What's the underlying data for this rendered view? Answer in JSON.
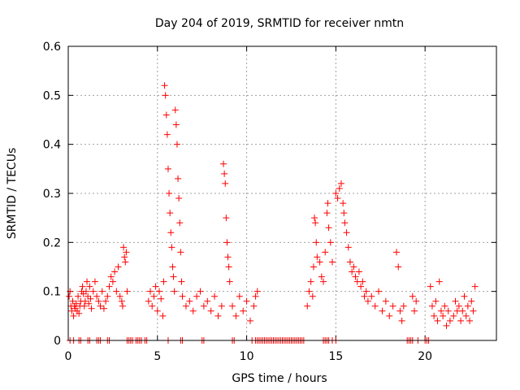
{
  "chart_data": {
    "type": "scatter",
    "title": "Day 204 of 2019, SRMTID for receiver nmtn",
    "xlabel": "GPS time / hours",
    "ylabel": "SRMTID / TECUs",
    "xlim": [
      0,
      24
    ],
    "ylim": [
      0,
      0.6
    ],
    "xticks": [
      0,
      5,
      10,
      15,
      20
    ],
    "yticks": [
      0,
      0.1,
      0.2,
      0.3,
      0.4,
      0.5,
      0.6
    ],
    "xtick_labels": [
      "0",
      "5",
      "10",
      "15",
      "20"
    ],
    "ytick_labels": [
      "0",
      "0.1",
      "0.2",
      "0.3",
      "0.4",
      "0.5",
      "0.6"
    ],
    "grid": true,
    "marker": "+",
    "color": "#ff0000",
    "series": [
      {
        "name": "SRMTID",
        "points": [
          [
            0.05,
            0.09
          ],
          [
            0.1,
            0.1
          ],
          [
            0.15,
            0.07
          ],
          [
            0.2,
            0.06
          ],
          [
            0.25,
            0.08
          ],
          [
            0.3,
            0.05
          ],
          [
            0.35,
            0.07
          ],
          [
            0.4,
            0.065
          ],
          [
            0.45,
            0.075
          ],
          [
            0.5,
            0.06
          ],
          [
            0.55,
            0.09
          ],
          [
            0.6,
            0.055
          ],
          [
            0.65,
            0.07
          ],
          [
            0.7,
            0.08
          ],
          [
            0.75,
            0.1
          ],
          [
            0.8,
            0.11
          ],
          [
            0.85,
            0.095
          ],
          [
            0.9,
            0.07
          ],
          [
            0.95,
            0.08
          ],
          [
            1.0,
            0.1
          ],
          [
            1.05,
            0.12
          ],
          [
            1.1,
            0.09
          ],
          [
            1.15,
            0.075
          ],
          [
            1.2,
            0.11
          ],
          [
            1.25,
            0.085
          ],
          [
            1.3,
            0.065
          ],
          [
            1.4,
            0.1
          ],
          [
            1.5,
            0.12
          ],
          [
            1.6,
            0.09
          ],
          [
            1.7,
            0.08
          ],
          [
            1.8,
            0.07
          ],
          [
            1.9,
            0.1
          ],
          [
            2.0,
            0.065
          ],
          [
            2.1,
            0.08
          ],
          [
            2.2,
            0.09
          ],
          [
            2.3,
            0.11
          ],
          [
            2.4,
            0.13
          ],
          [
            2.5,
            0.12
          ],
          [
            2.6,
            0.14
          ],
          [
            2.7,
            0.1
          ],
          [
            2.8,
            0.15
          ],
          [
            2.9,
            0.09
          ],
          [
            3.0,
            0.08
          ],
          [
            3.05,
            0.07
          ],
          [
            3.1,
            0.19
          ],
          [
            3.15,
            0.17
          ],
          [
            3.2,
            0.16
          ],
          [
            3.25,
            0.18
          ],
          [
            3.3,
            0.1
          ],
          [
            4.5,
            0.08
          ],
          [
            4.6,
            0.1
          ],
          [
            4.7,
            0.07
          ],
          [
            4.8,
            0.09
          ],
          [
            4.9,
            0.11
          ],
          [
            5.0,
            0.06
          ],
          [
            5.1,
            0.1
          ],
          [
            5.2,
            0.085
          ],
          [
            5.3,
            0.05
          ],
          [
            5.35,
            0.12
          ],
          [
            5.4,
            0.52
          ],
          [
            5.45,
            0.5
          ],
          [
            5.5,
            0.46
          ],
          [
            5.55,
            0.42
          ],
          [
            5.6,
            0.35
          ],
          [
            5.65,
            0.3
          ],
          [
            5.7,
            0.26
          ],
          [
            5.75,
            0.22
          ],
          [
            5.8,
            0.19
          ],
          [
            5.85,
            0.15
          ],
          [
            5.9,
            0.13
          ],
          [
            5.95,
            0.1
          ],
          [
            6.0,
            0.47
          ],
          [
            6.05,
            0.44
          ],
          [
            6.1,
            0.4
          ],
          [
            6.15,
            0.33
          ],
          [
            6.2,
            0.29
          ],
          [
            6.25,
            0.24
          ],
          [
            6.3,
            0.18
          ],
          [
            6.35,
            0.12
          ],
          [
            6.4,
            0.09
          ],
          [
            6.6,
            0.07
          ],
          [
            6.8,
            0.08
          ],
          [
            7.0,
            0.06
          ],
          [
            7.2,
            0.09
          ],
          [
            7.4,
            0.1
          ],
          [
            7.6,
            0.07
          ],
          [
            7.8,
            0.08
          ],
          [
            8.0,
            0.06
          ],
          [
            8.2,
            0.09
          ],
          [
            8.4,
            0.05
          ],
          [
            8.6,
            0.07
          ],
          [
            8.7,
            0.36
          ],
          [
            8.75,
            0.34
          ],
          [
            8.8,
            0.32
          ],
          [
            8.85,
            0.25
          ],
          [
            8.9,
            0.2
          ],
          [
            8.95,
            0.17
          ],
          [
            9.0,
            0.15
          ],
          [
            9.05,
            0.12
          ],
          [
            9.2,
            0.07
          ],
          [
            9.4,
            0.05
          ],
          [
            9.6,
            0.09
          ],
          [
            9.8,
            0.06
          ],
          [
            10.0,
            0.08
          ],
          [
            10.2,
            0.04
          ],
          [
            10.4,
            0.07
          ],
          [
            10.5,
            0.09
          ],
          [
            10.6,
            0.1
          ],
          [
            13.4,
            0.07
          ],
          [
            13.5,
            0.1
          ],
          [
            13.6,
            0.12
          ],
          [
            13.7,
            0.09
          ],
          [
            13.75,
            0.15
          ],
          [
            13.8,
            0.25
          ],
          [
            13.85,
            0.24
          ],
          [
            13.9,
            0.2
          ],
          [
            13.95,
            0.17
          ],
          [
            14.1,
            0.16
          ],
          [
            14.2,
            0.13
          ],
          [
            14.3,
            0.12
          ],
          [
            14.4,
            0.18
          ],
          [
            14.5,
            0.26
          ],
          [
            14.55,
            0.28
          ],
          [
            14.6,
            0.23
          ],
          [
            14.7,
            0.2
          ],
          [
            14.8,
            0.16
          ],
          [
            15.0,
            0.3
          ],
          [
            15.1,
            0.29
          ],
          [
            15.2,
            0.31
          ],
          [
            15.3,
            0.32
          ],
          [
            15.4,
            0.28
          ],
          [
            15.45,
            0.26
          ],
          [
            15.5,
            0.24
          ],
          [
            15.6,
            0.22
          ],
          [
            15.7,
            0.19
          ],
          [
            15.8,
            0.16
          ],
          [
            15.9,
            0.14
          ],
          [
            16.0,
            0.15
          ],
          [
            16.1,
            0.13
          ],
          [
            16.2,
            0.12
          ],
          [
            16.3,
            0.14
          ],
          [
            16.4,
            0.11
          ],
          [
            16.5,
            0.12
          ],
          [
            16.6,
            0.09
          ],
          [
            16.7,
            0.1
          ],
          [
            16.8,
            0.08
          ],
          [
            17.0,
            0.09
          ],
          [
            17.2,
            0.07
          ],
          [
            17.4,
            0.1
          ],
          [
            17.6,
            0.06
          ],
          [
            17.8,
            0.08
          ],
          [
            18.0,
            0.05
          ],
          [
            18.2,
            0.07
          ],
          [
            18.4,
            0.18
          ],
          [
            18.5,
            0.15
          ],
          [
            18.6,
            0.06
          ],
          [
            18.7,
            0.04
          ],
          [
            18.8,
            0.07
          ],
          [
            19.3,
            0.09
          ],
          [
            19.4,
            0.06
          ],
          [
            19.5,
            0.08
          ],
          [
            20.3,
            0.11
          ],
          [
            20.4,
            0.07
          ],
          [
            20.5,
            0.05
          ],
          [
            20.6,
            0.08
          ],
          [
            20.7,
            0.04
          ],
          [
            20.8,
            0.12
          ],
          [
            20.9,
            0.06
          ],
          [
            21.0,
            0.05
          ],
          [
            21.1,
            0.07
          ],
          [
            21.2,
            0.03
          ],
          [
            21.3,
            0.06
          ],
          [
            21.4,
            0.04
          ],
          [
            21.6,
            0.05
          ],
          [
            21.7,
            0.08
          ],
          [
            21.8,
            0.06
          ],
          [
            21.9,
            0.07
          ],
          [
            22.0,
            0.04
          ],
          [
            22.1,
            0.06
          ],
          [
            22.2,
            0.09
          ],
          [
            22.3,
            0.05
          ],
          [
            22.4,
            0.07
          ],
          [
            22.5,
            0.04
          ],
          [
            22.6,
            0.08
          ],
          [
            22.7,
            0.06
          ],
          [
            22.8,
            0.11
          ]
        ],
        "zero_points": [
          0.1,
          0.3,
          0.6,
          0.7,
          1.1,
          1.2,
          1.6,
          1.7,
          1.8,
          2.2,
          2.3,
          3.3,
          3.4,
          3.5,
          3.6,
          3.8,
          3.9,
          4.0,
          4.1,
          4.3,
          4.4,
          5.6,
          6.3,
          6.4,
          7.5,
          7.6,
          9.2,
          9.3,
          10.3,
          10.5,
          10.6,
          10.7,
          10.8,
          10.9,
          11.0,
          11.1,
          11.2,
          11.3,
          11.4,
          11.5,
          11.6,
          11.7,
          11.8,
          11.9,
          12.0,
          12.1,
          12.2,
          12.3,
          12.4,
          12.5,
          12.6,
          12.7,
          12.8,
          12.9,
          13.0,
          13.1,
          13.2,
          14.3,
          14.4,
          14.5,
          14.6,
          14.8,
          15.0,
          19.0,
          19.1,
          19.2,
          19.3,
          19.6,
          20.0,
          20.1,
          20.2
        ]
      }
    ]
  }
}
